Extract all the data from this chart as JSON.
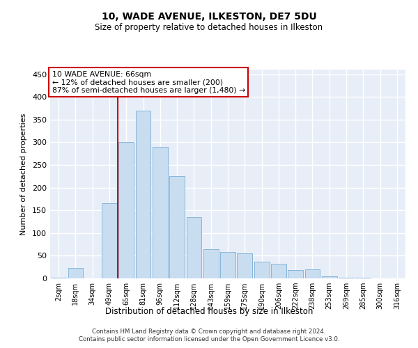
{
  "title1": "10, WADE AVENUE, ILKESTON, DE7 5DU",
  "title2": "Size of property relative to detached houses in Ilkeston",
  "xlabel": "Distribution of detached houses by size in Ilkeston",
  "ylabel": "Number of detached properties",
  "footer1": "Contains HM Land Registry data © Crown copyright and database right 2024.",
  "footer2": "Contains public sector information licensed under the Open Government Licence v3.0.",
  "annotation_line1": "10 WADE AVENUE: 66sqm",
  "annotation_line2": "← 12% of detached houses are smaller (200)",
  "annotation_line3": "87% of semi-detached houses are larger (1,480) →",
  "bar_color": "#c9ddf0",
  "bar_edge_color": "#7aafd4",
  "vline_color": "#cc0000",
  "background_color": "#e8eef8",
  "grid_color": "#ffffff",
  "categories": [
    "2sqm",
    "18sqm",
    "34sqm",
    "49sqm",
    "65sqm",
    "81sqm",
    "96sqm",
    "112sqm",
    "128sqm",
    "143sqm",
    "159sqm",
    "175sqm",
    "190sqm",
    "206sqm",
    "222sqm",
    "238sqm",
    "253sqm",
    "269sqm",
    "285sqm",
    "300sqm",
    "316sqm"
  ],
  "values": [
    1,
    23,
    0,
    165,
    300,
    370,
    290,
    225,
    135,
    65,
    58,
    55,
    37,
    32,
    18,
    20,
    5,
    2,
    1,
    0,
    0
  ],
  "vline_index": 4,
  "ylim": [
    0,
    460
  ],
  "yticks": [
    0,
    50,
    100,
    150,
    200,
    250,
    300,
    350,
    400,
    450
  ]
}
